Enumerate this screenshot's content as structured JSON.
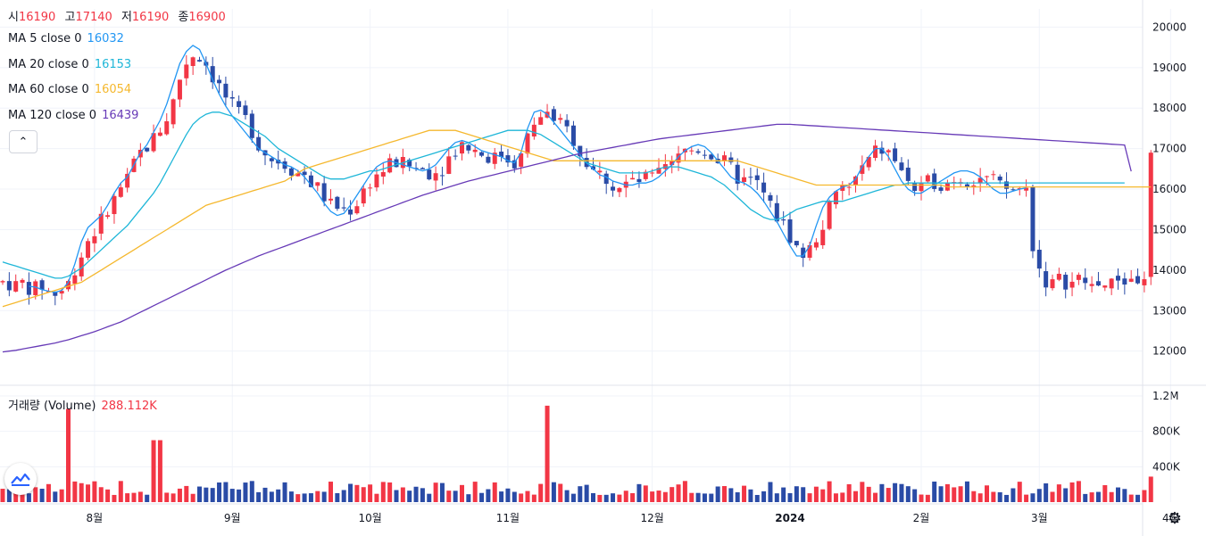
{
  "ohlc": {
    "open_label": "시",
    "open": "16190",
    "high_label": "고",
    "high": "17140",
    "low_label": "저",
    "low": "16190",
    "close_label": "종",
    "close": "16900"
  },
  "indicators": [
    {
      "label": "MA 5 close 0",
      "value": "16032",
      "color": "#2196f3"
    },
    {
      "label": "MA 20 close 0",
      "value": "16153",
      "color": "#1eb6d8"
    },
    {
      "label": "MA 60 close 0",
      "value": "16054",
      "color": "#f5b82e"
    },
    {
      "label": "MA 120 close 0",
      "value": "16439",
      "color": "#673ab7"
    }
  ],
  "volume_legend": {
    "label": "거래량 (Volume)",
    "value": "288.112K"
  },
  "collapse_icon": "chevron-up-icon",
  "settings_icon": "gear-icon",
  "colors": {
    "up": "#f23645",
    "down": "#2a4ba6",
    "grid": "#f0f3fa",
    "axis_text": "#131722"
  },
  "chart_data": {
    "type": "candlestick",
    "price_axis": {
      "ticks": [
        12000,
        13000,
        14000,
        15000,
        16000,
        17000,
        18000,
        19000,
        20000
      ],
      "ylim": [
        11200,
        20450
      ]
    },
    "volume_axis": {
      "ticks": [
        "400K",
        "800K",
        "1.2M"
      ],
      "tick_values": [
        400000,
        800000,
        1200000
      ],
      "ylim": [
        0,
        1240000
      ]
    },
    "x_labels": [
      "8월",
      "9월",
      "10월",
      "11월",
      "12월",
      "2024",
      "2월",
      "3월",
      "4월"
    ],
    "x_label_index": [
      14,
      35,
      56,
      77,
      99,
      120,
      140,
      158,
      178
    ],
    "bar_count": 176,
    "series": [
      {
        "name": "MA 5 close 0",
        "color": "#2196f3",
        "values": [
          null,
          null,
          null,
          null,
          13600,
          13580,
          13520,
          13480,
          13450,
          13500,
          13700,
          14150,
          14700,
          15050,
          15200,
          15350,
          15600,
          15900,
          16150,
          16300,
          16600,
          16900,
          17100,
          17400,
          17700,
          18100,
          18600,
          19100,
          19400,
          19550,
          19450,
          19100,
          18700,
          18350,
          18050,
          17800,
          17600,
          17400,
          17200,
          17000,
          16900,
          16800,
          16700,
          16600,
          16550,
          16450,
          16300,
          16100,
          15900,
          15650,
          15450,
          15350,
          15400,
          15600,
          15850,
          16100,
          16350,
          16550,
          16650,
          16700,
          16650,
          16600,
          16550,
          16500,
          16450,
          16500,
          16600,
          16800,
          17000,
          17150,
          17200,
          17150,
          17050,
          16950,
          16900,
          16850,
          16800,
          16700,
          16650,
          16900,
          17500,
          17900,
          17950,
          17850,
          17650,
          17450,
          17250,
          17050,
          16850,
          16650,
          16500,
          16350,
          16300,
          16200,
          16150,
          16100,
          16100,
          16150,
          16150,
          16200,
          16300,
          16450,
          16600,
          16800,
          16950,
          17050,
          17100,
          17050,
          16900,
          16700,
          16500,
          16300,
          16200,
          16150,
          16050,
          15900,
          15700,
          15450,
          15200,
          14900,
          14600,
          14350,
          14350,
          14600,
          15100,
          15550,
          15800,
          15950,
          16050,
          16100,
          16250,
          16550,
          16800,
          17000,
          17000,
          16800,
          16500,
          16200,
          16000,
          15900,
          15900,
          16000,
          16100,
          16200,
          16300,
          16400,
          16450,
          16450,
          16400,
          16300,
          16150,
          16000,
          15900,
          15900,
          15950,
          16000,
          16032
        ]
      },
      {
        "name": "MA 20 close 0",
        "color": "#1eb6d8",
        "values": [
          14200,
          14150,
          14100,
          14050,
          14000,
          13950,
          13900,
          13850,
          13800,
          13800,
          13850,
          13950,
          14050,
          14200,
          14350,
          14500,
          14650,
          14800,
          14950,
          15100,
          15300,
          15500,
          15700,
          15900,
          16150,
          16450,
          16750,
          17050,
          17350,
          17600,
          17750,
          17850,
          17900,
          17900,
          17850,
          17800,
          17700,
          17600,
          17500,
          17400,
          17300,
          17150,
          17000,
          16900,
          16800,
          16700,
          16600,
          16500,
          16400,
          16300,
          16250,
          16250,
          16250,
          16300,
          16350,
          16400,
          16450,
          16450,
          16500,
          16550,
          16600,
          16650,
          16700,
          16750,
          16800,
          16850,
          16900,
          16950,
          17000,
          17050,
          17100,
          17150,
          17200,
          17250,
          17300,
          17350,
          17400,
          17450,
          17450,
          17450,
          17450,
          17400,
          17350,
          17250,
          17150,
          17050,
          16950,
          16850,
          16750,
          16650,
          16600,
          16550,
          16500,
          16450,
          16400,
          16400,
          16400,
          16400,
          16400,
          16450,
          16500,
          16550,
          16550,
          16550,
          16500,
          16450,
          16400,
          16350,
          16300,
          16200,
          16100,
          15950,
          15800,
          15650,
          15500,
          15400,
          15300,
          15250,
          15250,
          15300,
          15400,
          15500,
          15550,
          15600,
          15650,
          15700,
          15700,
          15700,
          15700,
          15750,
          15800,
          15850,
          15900,
          15950,
          16000,
          16050,
          16100,
          16100,
          16150,
          16150,
          16150,
          16150,
          16150,
          16150,
          16150,
          16150,
          16150,
          16153,
          16153,
          16153,
          16153,
          16153,
          16153,
          16153,
          16153,
          16153,
          16153,
          16153,
          16153,
          16153,
          16153,
          16153,
          16153,
          16153,
          16153,
          16153,
          16153,
          16153,
          16153,
          16153,
          16153,
          16153
        ]
      },
      {
        "name": "MA 60 close 0",
        "color": "#f5b82e",
        "values": [
          13100,
          13150,
          13200,
          13250,
          13300,
          13350,
          13400,
          13450,
          13500,
          13550,
          13600,
          13650,
          13700,
          13800,
          13900,
          14000,
          14100,
          14200,
          14300,
          14400,
          14500,
          14600,
          14700,
          14800,
          14900,
          15000,
          15100,
          15200,
          15300,
          15400,
          15500,
          15600,
          15650,
          15700,
          15750,
          15800,
          15850,
          15900,
          15950,
          16000,
          16050,
          16100,
          16150,
          16200,
          16300,
          16400,
          16500,
          16550,
          16600,
          16650,
          16700,
          16750,
          16800,
          16850,
          16900,
          16950,
          17000,
          17050,
          17100,
          17150,
          17200,
          17250,
          17300,
          17350,
          17400,
          17450,
          17450,
          17450,
          17450,
          17450,
          17400,
          17350,
          17300,
          17250,
          17200,
          17150,
          17100,
          17050,
          17000,
          16950,
          16900,
          16850,
          16800,
          16750,
          16700,
          16700,
          16700,
          16700,
          16700,
          16700,
          16700,
          16700,
          16700,
          16700,
          16700,
          16700,
          16700,
          16700,
          16700,
          16700,
          16700,
          16700,
          16700,
          16700,
          16700,
          16700,
          16700,
          16700,
          16700,
          16700,
          16700,
          16700,
          16700,
          16650,
          16600,
          16550,
          16500,
          16450,
          16400,
          16350,
          16300,
          16250,
          16200,
          16150,
          16100,
          16100,
          16100,
          16100,
          16100,
          16100,
          16100,
          16100,
          16100,
          16100,
          16100,
          16100,
          16100,
          16100,
          16100,
          16100,
          16100,
          16100,
          16100,
          16100,
          16054,
          16054,
          16054,
          16054,
          16054,
          16054,
          16054,
          16054,
          16054,
          16054,
          16054,
          16054,
          16054,
          16054,
          16054,
          16054,
          16054,
          16054,
          16054,
          16054,
          16054,
          16054,
          16054,
          16054,
          16054,
          16054,
          16054,
          16054,
          16054,
          16054,
          16054,
          16054
        ]
      },
      {
        "name": "MA 120 close 0",
        "color": "#673ab7",
        "values": [
          11980,
          12000,
          12020,
          12050,
          12080,
          12110,
          12140,
          12170,
          12200,
          12240,
          12280,
          12330,
          12380,
          12430,
          12480,
          12540,
          12600,
          12660,
          12720,
          12800,
          12880,
          12960,
          13040,
          13120,
          13200,
          13280,
          13360,
          13440,
          13520,
          13600,
          13680,
          13760,
          13840,
          13920,
          14000,
          14070,
          14140,
          14210,
          14280,
          14350,
          14410,
          14470,
          14530,
          14590,
          14650,
          14710,
          14770,
          14830,
          14890,
          14950,
          15010,
          15070,
          15130,
          15190,
          15250,
          15310,
          15370,
          15430,
          15490,
          15550,
          15610,
          15670,
          15730,
          15790,
          15850,
          15900,
          15950,
          16000,
          16050,
          16100,
          16150,
          16200,
          16240,
          16280,
          16320,
          16360,
          16400,
          16440,
          16480,
          16520,
          16560,
          16600,
          16640,
          16680,
          16720,
          16760,
          16800,
          16840,
          16880,
          16910,
          16940,
          16970,
          17000,
          17030,
          17060,
          17090,
          17120,
          17150,
          17180,
          17210,
          17240,
          17260,
          17280,
          17300,
          17320,
          17340,
          17360,
          17380,
          17400,
          17420,
          17440,
          17460,
          17480,
          17500,
          17520,
          17540,
          17560,
          17580,
          17600,
          17600,
          17600,
          17590,
          17580,
          17570,
          17560,
          17550,
          17540,
          17530,
          17520,
          17510,
          17500,
          17490,
          17480,
          17470,
          17460,
          17450,
          17440,
          17430,
          17420,
          17410,
          17400,
          17390,
          17380,
          17370,
          17360,
          17350,
          17340,
          17330,
          17320,
          17310,
          17300,
          17290,
          17280,
          17270,
          17260,
          17250,
          17240,
          17230,
          17220,
          17210,
          17200,
          17190,
          17180,
          17170,
          17160,
          17150,
          17140,
          17130,
          17120,
          17110,
          17100,
          17090,
          16439
        ]
      }
    ],
    "volume_notes": "volume bars colored by candle direction"
  }
}
